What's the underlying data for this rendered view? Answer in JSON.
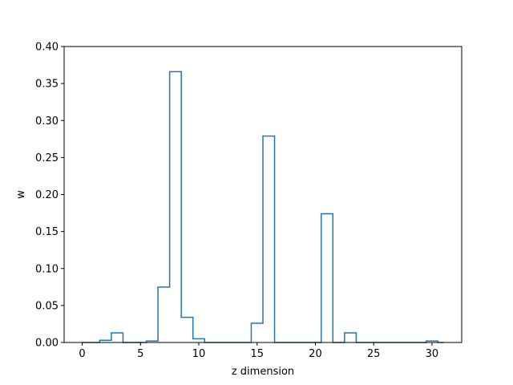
{
  "chart_data": {
    "type": "line",
    "drawstyle": "steps-mid",
    "title": "",
    "xlabel": "z dimension",
    "ylabel": "w",
    "xlim": [
      -1.55,
      32.55
    ],
    "ylim": [
      0,
      0.4
    ],
    "x_ticks": [
      0,
      5,
      10,
      15,
      20,
      25,
      30
    ],
    "x_tick_labels": [
      "0",
      "5",
      "10",
      "15",
      "20",
      "25",
      "30"
    ],
    "y_ticks": [
      0,
      0.05,
      0.1,
      0.15,
      0.2,
      0.25,
      0.3,
      0.35,
      0.4
    ],
    "y_tick_labels": [
      "0.00",
      "0.05",
      "0.10",
      "0.15",
      "0.20",
      "0.25",
      "0.30",
      "0.35",
      "0.40"
    ],
    "grid": false,
    "series": [
      {
        "color": "#1f77b4",
        "x": [
          0,
          1,
          2,
          3,
          4,
          5,
          6,
          7,
          8,
          9,
          10,
          11,
          12,
          13,
          14,
          15,
          16,
          17,
          18,
          19,
          20,
          21,
          22,
          23,
          24,
          25,
          26,
          27,
          28,
          29,
          30,
          31
        ],
        "y": [
          0,
          0,
          0.003,
          0.013,
          0,
          0,
          0.002,
          0.075,
          0.366,
          0.034,
          0.005,
          0,
          0,
          0,
          0,
          0.026,
          0.279,
          0,
          0,
          0,
          0,
          0.174,
          0,
          0.013,
          0,
          0,
          0,
          0,
          0,
          0,
          0.002,
          0
        ]
      }
    ]
  }
}
